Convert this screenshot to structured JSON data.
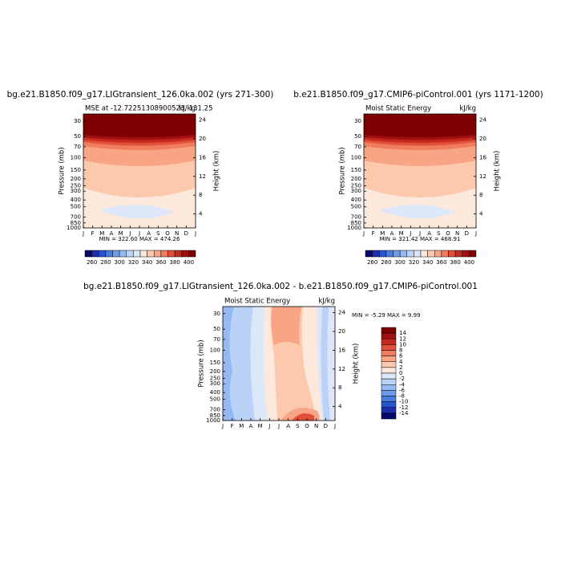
{
  "panels": [
    {
      "title": "bg.e21.B1850.f09_g17.LIGtransient_126.0ka.002 (yrs 271-300)",
      "subtitle_left": "MSE at -12.72251308900523, 131.25",
      "subtitle_right": "kJ/kg",
      "y_label": "Pressure (mb)",
      "y2_label": "Height (km)",
      "pressure_ticks": [
        30,
        50,
        70,
        100,
        150,
        200,
        250,
        300,
        400,
        500,
        700,
        850,
        1000
      ],
      "height_ticks": [
        24,
        20,
        16,
        12,
        8,
        4
      ],
      "months": [
        "J",
        "F",
        "M",
        "A",
        "M",
        "J",
        "J",
        "A",
        "S",
        "O",
        "N",
        "D",
        "J"
      ],
      "stats": "MIN = 322.60  MAX = 474.26",
      "colorbar_labels": [
        260,
        280,
        300,
        320,
        340,
        360,
        380,
        400
      ]
    },
    {
      "title": "b.e21.B1850.f09_g17.CMIP6-piControl.001 (yrs 1171-1200)",
      "subtitle_left": "Moist Static Energy",
      "subtitle_right": "kJ/kg",
      "y_label": "Pressure (mb)",
      "y2_label": "Height (km)",
      "pressure_ticks": [
        30,
        50,
        70,
        100,
        150,
        200,
        250,
        300,
        400,
        500,
        700,
        850,
        1000
      ],
      "height_ticks": [
        24,
        20,
        16,
        12,
        8,
        4
      ],
      "months": [
        "J",
        "F",
        "M",
        "A",
        "M",
        "J",
        "J",
        "A",
        "S",
        "O",
        "N",
        "D",
        "J"
      ],
      "stats": "MIN = 321.42  MAX = 468.91",
      "colorbar_labels": [
        260,
        280,
        300,
        320,
        340,
        360,
        380,
        400
      ]
    },
    {
      "title": "bg.e21.B1850.f09_g17.LIGtransient_126.0ka.002 - b.e21.B1850.f09_g17.CMIP6-piControl.001",
      "subtitle_left": "Moist Static Energy",
      "subtitle_right": "kJ/kg",
      "y_label": "Pressure (mb)",
      "y2_label": "Height (km)",
      "pressure_ticks": [
        30,
        50,
        70,
        100,
        150,
        200,
        250,
        300,
        400,
        500,
        700,
        850,
        1000
      ],
      "height_ticks": [
        24,
        20,
        16,
        12,
        8,
        4
      ],
      "months": [
        "J",
        "F",
        "M",
        "A",
        "M",
        "J",
        "J",
        "A",
        "S",
        "O",
        "N",
        "D",
        "J"
      ],
      "stats": "MIN = -5.29  MAX =   9.99",
      "colorbar_labels": [
        14,
        12,
        10,
        8,
        6,
        4,
        2,
        0,
        -2,
        -4,
        -6,
        -8,
        -10,
        -12,
        -14
      ]
    }
  ]
}
